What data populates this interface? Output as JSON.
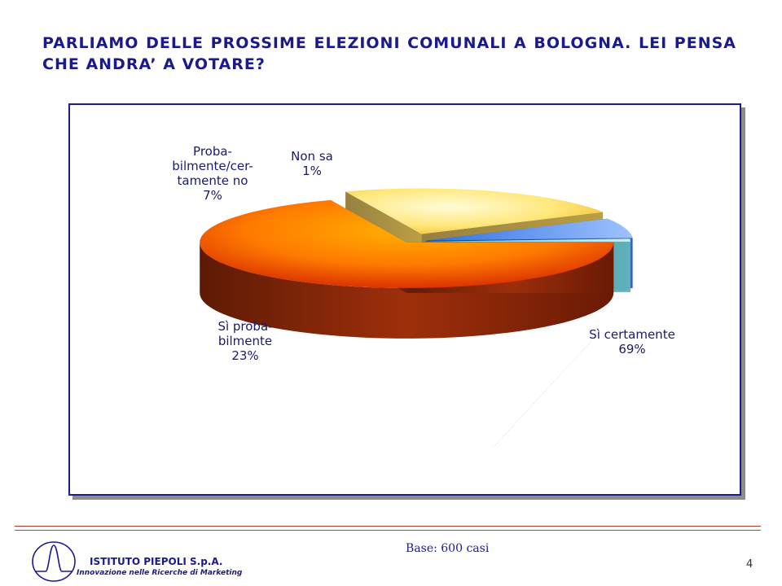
{
  "title": "PARLIAMO DELLE PROSSIME ELEZIONI COMUNALI A BOLOGNA. LEI PENSA CHE ANDRA’ A VOTARE?",
  "chart_data": {
    "type": "pie",
    "slices": [
      {
        "label": "Sì certamente",
        "value": 69,
        "value_label": "69%",
        "color": "#e33a08"
      },
      {
        "label": "Sì proba-bilmente",
        "value": 23,
        "value_label": "23%",
        "color": "#f5c83a"
      },
      {
        "label": "Proba-bilmente/cer-tamente no",
        "value": 7,
        "value_label": "7%",
        "color": "#4a86e8"
      },
      {
        "label": "Non sa",
        "value": 1,
        "value_label": "1%",
        "color": "#7fd3e0"
      }
    ]
  },
  "footer": {
    "base_note": "Base: 600 casi",
    "page_number": "4",
    "company_name": "ISTITUTO PIEPOLI S.p.A.",
    "tagline": "Innovazione nelle Ricerche di Marketing"
  }
}
